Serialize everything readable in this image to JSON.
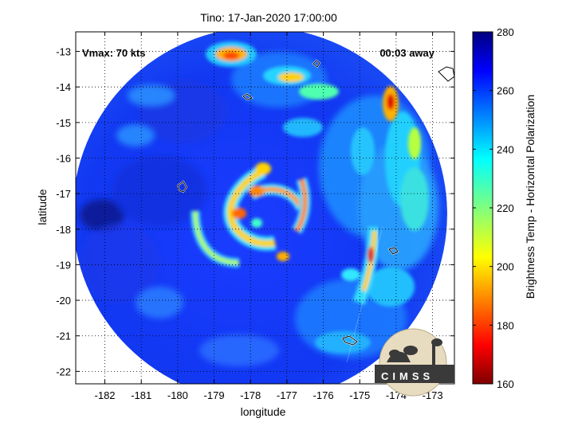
{
  "chart_data": {
    "type": "heatmap",
    "title": "Tino: 17-Jan-2020 17:00:00",
    "xlabel": "longitude",
    "ylabel": "latitude",
    "xlim": [
      -182.8,
      -172.4
    ],
    "ylim": [
      -22.35,
      -12.45
    ],
    "x_ticks": [
      -182,
      -181,
      -180,
      -179,
      -178,
      -177,
      -176,
      -175,
      -174,
      -173
    ],
    "y_ticks": [
      -13,
      -14,
      -15,
      -16,
      -17,
      -18,
      -19,
      -20,
      -21,
      -22
    ],
    "grid": true,
    "center": [
      -177.9,
      -17.45
    ],
    "annotations": {
      "vmax": "Vmax: 70 kts",
      "time_offset": "00:03 away"
    },
    "colorbar": {
      "label": "Brightness Temp - Horizontal Polarization",
      "min": 160,
      "max": 280,
      "ticks": [
        160,
        180,
        200,
        220,
        240,
        260,
        280
      ],
      "colormap": "jet"
    },
    "features": [
      {
        "name": "northwest band",
        "lon": -178.6,
        "lat": -13.2,
        "tb": 190
      },
      {
        "name": "north band",
        "lon": -177.0,
        "lat": -13.9,
        "tb": 205
      },
      {
        "name": "northeast band",
        "lon": -174.1,
        "lat": -14.6,
        "tb": 185
      },
      {
        "name": "inner spiral",
        "lon": -177.6,
        "lat": -17.5,
        "tb": 200
      },
      {
        "name": "east rainband",
        "lon": -174.6,
        "lat": -19.3,
        "tb": 195
      },
      {
        "name": "cold open ocean",
        "lon": -182.3,
        "lat": -17.8,
        "tb": 268
      }
    ],
    "logo": "CIMSS"
  }
}
